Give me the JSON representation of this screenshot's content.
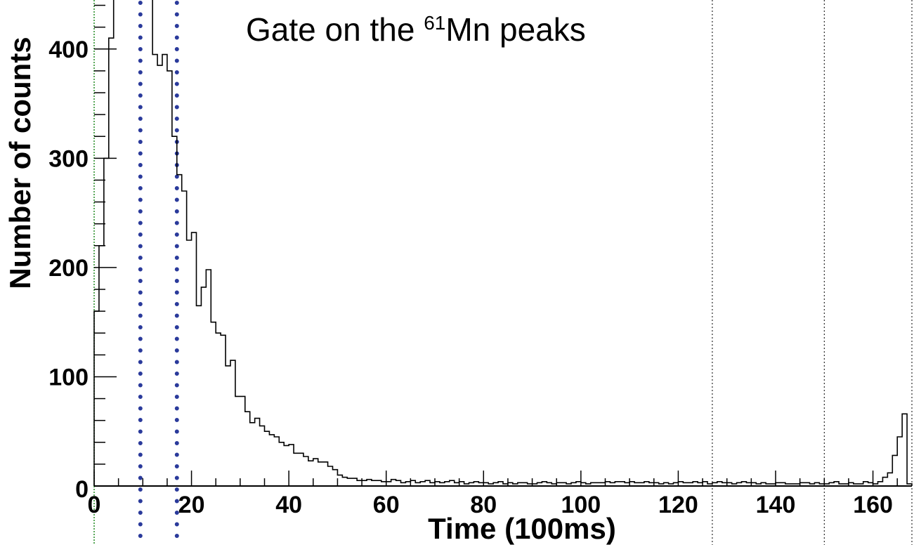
{
  "chart_data": {
    "type": "histogram",
    "title": {
      "prefix": "Gate on the ",
      "superscript": "61",
      "suffix": "Mn peaks"
    },
    "xlabel": "Time (100ms)",
    "ylabel": "Number of counts",
    "xlim": [
      0,
      168
    ],
    "ylim": [
      0,
      450
    ],
    "xticks": [
      0,
      20,
      40,
      60,
      80,
      100,
      120,
      140,
      160
    ],
    "yticks": [
      0,
      100,
      200,
      300,
      400
    ],
    "bin_width": 1,
    "values": [
      160,
      220,
      300,
      410,
      450,
      450,
      450,
      450,
      450,
      450,
      450,
      450,
      395,
      385,
      395,
      380,
      320,
      285,
      270,
      225,
      232,
      165,
      182,
      198,
      150,
      140,
      138,
      110,
      115,
      82,
      82,
      68,
      58,
      62,
      55,
      50,
      47,
      45,
      40,
      37,
      38,
      30,
      30,
      27,
      23,
      25,
      22,
      22,
      18,
      15,
      10,
      8,
      7,
      7,
      5,
      5,
      6,
      5,
      5,
      4,
      4,
      6,
      5,
      3,
      4,
      5,
      3,
      4,
      5,
      3,
      4,
      3,
      4,
      5,
      3,
      4,
      2,
      3,
      4,
      3,
      3,
      2,
      3,
      4,
      2,
      3,
      2,
      3,
      3,
      2,
      2,
      3,
      4,
      3,
      2,
      3,
      3,
      2,
      3,
      4,
      3,
      2,
      3,
      3,
      3,
      4,
      3,
      4,
      4,
      3,
      4,
      3,
      3,
      4,
      3,
      3,
      2,
      3,
      2,
      3,
      4,
      3,
      3,
      4,
      3,
      4,
      2,
      3,
      4,
      3,
      3,
      2,
      3,
      4,
      3,
      3,
      2,
      3,
      2,
      2,
      3,
      3,
      2,
      2,
      2,
      3,
      3,
      2,
      3,
      2,
      2,
      3,
      4,
      2,
      2,
      3,
      2,
      2,
      4,
      3,
      2,
      4,
      8,
      12,
      28,
      45,
      66,
      2
    ],
    "markers": [
      {
        "x": 9.5,
        "style": "dotted-blue"
      },
      {
        "x": 17,
        "style": "dotted-blue"
      },
      {
        "x": 127,
        "style": "dotted-black"
      },
      {
        "x": 150,
        "style": "dotted-black"
      },
      {
        "x": 168,
        "style": "dotted-black"
      }
    ],
    "colors": {
      "histogram": "#000000",
      "marker_blue": "#2a3a9b",
      "marker_black": "#000000",
      "axis_left": "#228b22"
    }
  }
}
